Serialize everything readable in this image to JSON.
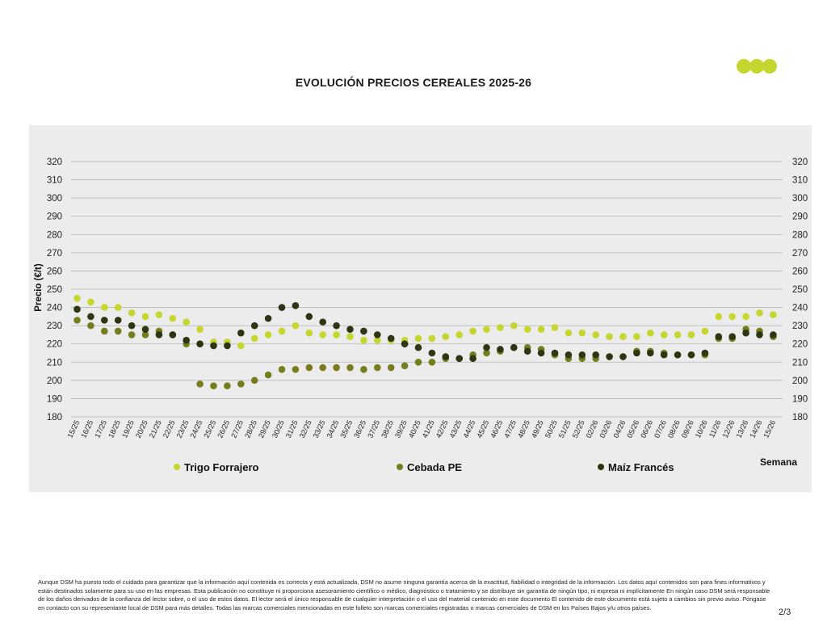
{
  "page": {
    "footer": "Aunque DSM ha puesto todo el cuidado para garantizar que la información aquí contenida es correcta y está actualizada, DSM no asume ninguna garantía acerca de la exactitud, fiabilidad o integridad de la información. Los datos aquí contenidos son para fines informativos y están destinados solamente para su uso en las empresas. Esta publicación no constituye ni proporciona asesoramiento científico o médico, diagnóstico o tratamiento y se distribuye sin garantía de ningún tipo, ni expresa ni implícitamente En ningún caso DSM será responsable de los daños derivados de la confianza del lector sobre, o el uso de estos datos. El lector será el único responsable de cualquier interpretación o el uso del material contenido en este documento El contenido de este documento está sujeto a cambios sin previo aviso. Póngase en contacto con su representante local de DSM para más detalles. Todas las marcas comerciales mencionadas en este folleto son marcas comerciales registradas o marcas comerciales de DSM en los Países Bajos y/u otros países.",
    "page_number": "2/3"
  },
  "logo": {
    "colors": [
      "#c5d62e",
      "#c5d62e",
      "#c5d62e"
    ]
  },
  "chart_data": {
    "type": "scatter",
    "title": "EVOLUCIÓN PRECIOS CEREALES 2025-26",
    "xlabel": "Semana",
    "ylabel": "Precio (€/t)",
    "ylim": [
      180,
      320
    ],
    "yticks": [
      180,
      190,
      200,
      210,
      220,
      230,
      240,
      250,
      260,
      270,
      280,
      290,
      300,
      310,
      320
    ],
    "grid": true,
    "legend_position": "bottom",
    "background": "#ececec",
    "categories": [
      "15/25",
      "16/25",
      "17/25",
      "18/25",
      "19/25",
      "20/25",
      "21/25",
      "22/25",
      "23/25",
      "24/25",
      "25/25",
      "26/25",
      "27/25",
      "28/25",
      "29/25",
      "30/25",
      "31/25",
      "32/25",
      "33/25",
      "34/25",
      "35/25",
      "36/25",
      "37/25",
      "38/25",
      "39/25",
      "40/25",
      "41/25",
      "42/25",
      "43/25",
      "44/25",
      "45/25",
      "46/25",
      "47/25",
      "48/25",
      "49/25",
      "50/25",
      "51/25",
      "52/25",
      "02/26",
      "03/26",
      "04/26",
      "05/26",
      "06/26",
      "07/26",
      "08/26",
      "09/26",
      "10/26",
      "11/26",
      "12/26",
      "13/26",
      "14/26",
      "15/26"
    ],
    "series": [
      {
        "name": "Trigo Forrajero",
        "color": "#c5d62e",
        "values": [
          245,
          243,
          240,
          240,
          237,
          235,
          236,
          234,
          232,
          228,
          221,
          221,
          219,
          223,
          225,
          227,
          230,
          226,
          225,
          225,
          224,
          222,
          222,
          222,
          222,
          223,
          223,
          224,
          225,
          227,
          228,
          229,
          230,
          228,
          228,
          229,
          226,
          226,
          225,
          224,
          224,
          224,
          226,
          225,
          225,
          225,
          227,
          235,
          235,
          235,
          237,
          236
        ]
      },
      {
        "name": "Cebada PE",
        "color": "#757d1d",
        "values": [
          233,
          230,
          227,
          227,
          225,
          225,
          227,
          225,
          220,
          198,
          197,
          197,
          198,
          200,
          203,
          206,
          206,
          207,
          207,
          207,
          207,
          206,
          207,
          207,
          208,
          210,
          210,
          212,
          212,
          214,
          215,
          216,
          218,
          218,
          217,
          214,
          212,
          212,
          212,
          213,
          213,
          216,
          216,
          215,
          214,
          214,
          214,
          223,
          223,
          228,
          227,
          224
        ]
      },
      {
        "name": "Maíz Francés",
        "color": "#2e3512",
        "values": [
          239,
          235,
          233,
          233,
          230,
          228,
          225,
          225,
          222,
          220,
          219,
          219,
          226,
          230,
          234,
          240,
          241,
          235,
          232,
          230,
          228,
          227,
          225,
          223,
          220,
          218,
          215,
          213,
          212,
          212,
          218,
          217,
          218,
          216,
          215,
          215,
          214,
          214,
          214,
          213,
          213,
          215,
          215,
          214,
          214,
          214,
          215,
          224,
          224,
          226,
          225,
          225
        ]
      }
    ]
  }
}
